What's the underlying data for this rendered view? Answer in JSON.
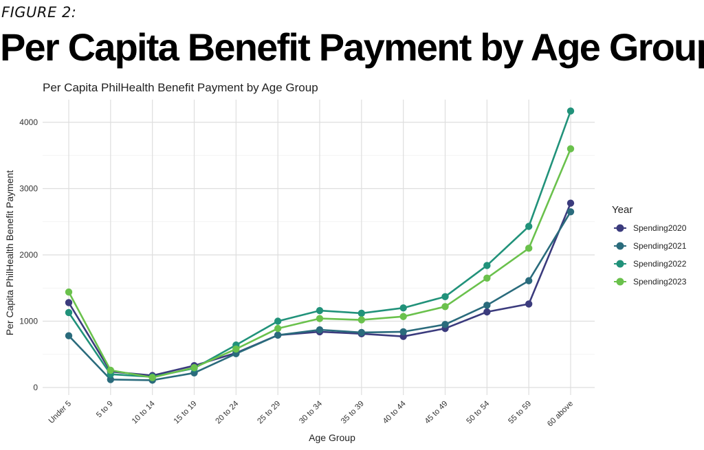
{
  "figure_label": "FIGURE 2:",
  "headline": "Per Capita Benefit Payment by Age Group",
  "chart_data": {
    "type": "line",
    "title": "Per Capita PhilHealth Benefit Payment by Age Group",
    "xlabel": "Age Group",
    "ylabel": "Per Capita PhilHealth Benefit Payment",
    "categories": [
      "Under 5",
      "5 to 9",
      "10 to 14",
      "15 to 19",
      "20 to 24",
      "25 to 29",
      "30 to 34",
      "35 to 39",
      "40 to 44",
      "45 to 49",
      "50 to 54",
      "55 to 59",
      "60 above"
    ],
    "ylim": [
      0,
      4300
    ],
    "yticks": [
      0,
      1000,
      2000,
      3000,
      4000
    ],
    "grid": true,
    "legend_title": "Year",
    "legend_position": "right",
    "series": [
      {
        "name": "Spending2020",
        "color": "#3b3b7d",
        "values": [
          1280,
          240,
          180,
          330,
          520,
          790,
          840,
          810,
          770,
          890,
          1140,
          1260,
          2780
        ]
      },
      {
        "name": "Spending2021",
        "color": "#2a6b7c",
        "values": [
          780,
          120,
          110,
          220,
          510,
          790,
          870,
          830,
          840,
          950,
          1240,
          1610,
          2650
        ]
      },
      {
        "name": "Spending2022",
        "color": "#21927a",
        "values": [
          1130,
          200,
          160,
          290,
          640,
          1000,
          1160,
          1120,
          1200,
          1370,
          1840,
          2430,
          4170
        ]
      },
      {
        "name": "Spending2023",
        "color": "#6ac14c",
        "values": [
          1440,
          260,
          150,
          300,
          580,
          890,
          1040,
          1020,
          1070,
          1220,
          1650,
          2100,
          3600
        ]
      }
    ]
  }
}
